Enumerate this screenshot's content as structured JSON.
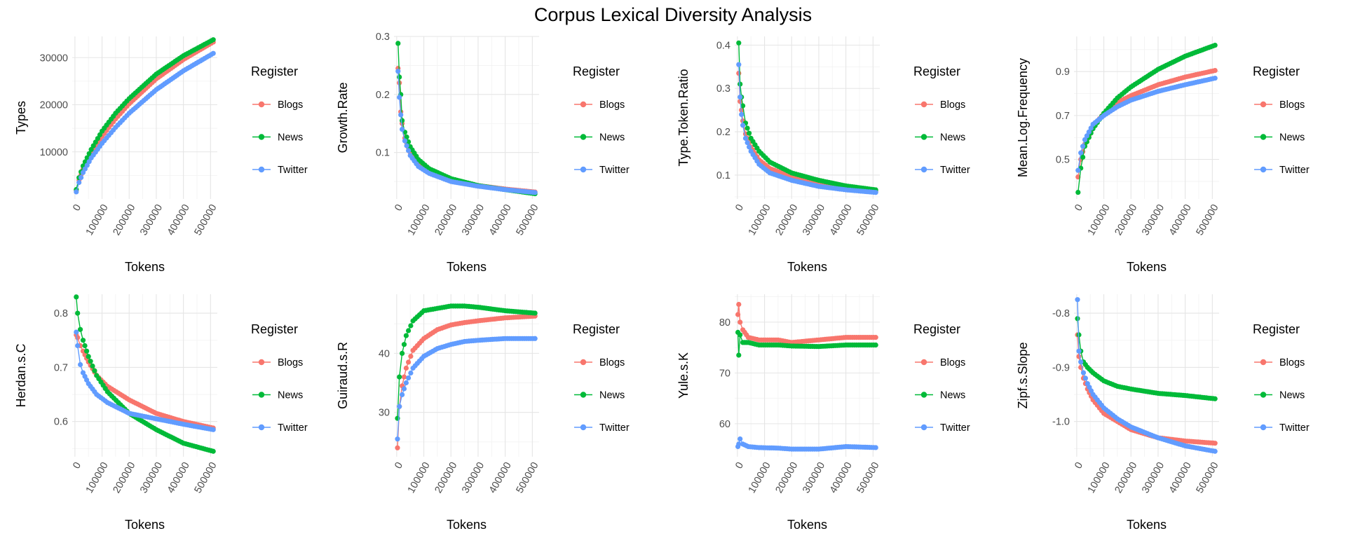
{
  "title": "Corpus Lexical Diversity Analysis",
  "colors": {
    "Blogs": "#F8766D",
    "News": "#00BA38",
    "Twitter": "#619CFF"
  },
  "legend_title": "Register",
  "legend_items": [
    "Blogs",
    "News",
    "Twitter"
  ],
  "chart_data": [
    {
      "type": "line",
      "title": "",
      "xlabel": "Tokens",
      "ylabel": "Types",
      "xlim": [
        -10000,
        525000
      ],
      "ylim": [
        0,
        34500
      ],
      "xticks": [
        0,
        100000,
        200000,
        300000,
        400000,
        500000
      ],
      "yticks": [
        10000,
        20000,
        30000
      ],
      "ytick_labels": [
        "10000",
        "20000",
        "30000"
      ],
      "grid": true,
      "legend": "right",
      "x": [
        5000,
        15000,
        30000,
        60000,
        100000,
        150000,
        200000,
        300000,
        400000,
        510000
      ],
      "series": [
        {
          "name": "Blogs",
          "values": [
            1800,
            4000,
            6300,
            9800,
            13300,
            17000,
            20200,
            25500,
            29600,
            33300
          ]
        },
        {
          "name": "News",
          "values": [
            2000,
            4500,
            7000,
            10500,
            14400,
            18200,
            21300,
            26500,
            30400,
            33800
          ]
        },
        {
          "name": "Twitter",
          "values": [
            1500,
            3500,
            5600,
            8700,
            11800,
            15200,
            18200,
            23200,
            27200,
            30900
          ]
        }
      ]
    },
    {
      "type": "line",
      "title": "",
      "xlabel": "Tokens",
      "ylabel": "Growth.Rate",
      "xlim": [
        -10000,
        525000
      ],
      "ylim": [
        0.02,
        0.3
      ],
      "xticks": [
        0,
        100000,
        200000,
        300000,
        400000,
        500000
      ],
      "yticks": [
        0.1,
        0.2,
        0.3
      ],
      "ytick_labels": [
        "0.1",
        "0.2",
        "0.3"
      ],
      "grid": true,
      "legend": "right",
      "x": [
        5000,
        10000,
        15000,
        20000,
        30000,
        50000,
        80000,
        120000,
        200000,
        300000,
        400000,
        510000
      ],
      "series": [
        {
          "name": "Blogs",
          "values": [
            0.245,
            0.22,
            0.17,
            0.15,
            0.125,
            0.1,
            0.08,
            0.067,
            0.052,
            0.043,
            0.037,
            0.032
          ]
        },
        {
          "name": "News",
          "values": [
            0.288,
            0.23,
            0.2,
            0.155,
            0.135,
            0.11,
            0.088,
            0.072,
            0.055,
            0.043,
            0.036,
            0.029
          ]
        },
        {
          "name": "Twitter",
          "values": [
            0.24,
            0.195,
            0.165,
            0.14,
            0.12,
            0.095,
            0.076,
            0.064,
            0.05,
            0.042,
            0.036,
            0.031
          ]
        }
      ]
    },
    {
      "type": "line",
      "title": "",
      "xlabel": "Tokens",
      "ylabel": "Type.Token.Ratio",
      "xlim": [
        -10000,
        525000
      ],
      "ylim": [
        0.045,
        0.42
      ],
      "xticks": [
        0,
        100000,
        200000,
        300000,
        400000,
        500000
      ],
      "yticks": [
        0.1,
        0.2,
        0.3,
        0.4
      ],
      "ytick_labels": [
        "0.1",
        "0.2",
        "0.3",
        "0.4"
      ],
      "grid": true,
      "legend": "right",
      "x": [
        5000,
        10000,
        15000,
        20000,
        30000,
        50000,
        80000,
        120000,
        200000,
        300000,
        400000,
        510000
      ],
      "series": [
        {
          "name": "Blogs",
          "values": [
            0.335,
            0.27,
            0.25,
            0.225,
            0.195,
            0.165,
            0.135,
            0.115,
            0.097,
            0.082,
            0.072,
            0.063
          ]
        },
        {
          "name": "News",
          "values": [
            0.405,
            0.31,
            0.28,
            0.26,
            0.22,
            0.185,
            0.155,
            0.13,
            0.105,
            0.088,
            0.075,
            0.066
          ]
        },
        {
          "name": "Twitter",
          "values": [
            0.355,
            0.28,
            0.24,
            0.215,
            0.185,
            0.155,
            0.125,
            0.105,
            0.088,
            0.074,
            0.066,
            0.06
          ]
        }
      ]
    },
    {
      "type": "line",
      "title": "",
      "xlabel": "Tokens",
      "ylabel": "Mean.Log.Frequency",
      "xlim": [
        -10000,
        525000
      ],
      "ylim": [
        0.32,
        1.06
      ],
      "xticks": [
        0,
        100000,
        200000,
        300000,
        400000,
        500000
      ],
      "yticks": [
        0.5,
        0.7,
        0.9
      ],
      "ytick_labels": [
        "0.5",
        "0.7",
        "0.9"
      ],
      "grid": true,
      "legend": "right",
      "x": [
        5000,
        15000,
        30000,
        60000,
        100000,
        150000,
        200000,
        300000,
        400000,
        510000
      ],
      "series": [
        {
          "name": "Blogs",
          "values": [
            0.42,
            0.5,
            0.57,
            0.65,
            0.71,
            0.76,
            0.79,
            0.84,
            0.875,
            0.905
          ]
        },
        {
          "name": "News",
          "values": [
            0.35,
            0.46,
            0.56,
            0.64,
            0.71,
            0.78,
            0.83,
            0.91,
            0.97,
            1.02
          ]
        },
        {
          "name": "Twitter",
          "values": [
            0.45,
            0.53,
            0.59,
            0.66,
            0.7,
            0.74,
            0.77,
            0.81,
            0.84,
            0.87
          ]
        }
      ]
    },
    {
      "type": "line",
      "title": "",
      "xlabel": "Tokens",
      "ylabel": "Herdan.s.C",
      "xlim": [
        -10000,
        525000
      ],
      "ylim": [
        0.535,
        0.835
      ],
      "xticks": [
        0,
        100000,
        200000,
        300000,
        400000,
        500000
      ],
      "yticks": [
        0.6,
        0.7,
        0.8
      ],
      "ytick_labels": [
        "0.6",
        "0.7",
        "0.8"
      ],
      "grid": true,
      "legend": "right",
      "x": [
        5000,
        10000,
        20000,
        30000,
        50000,
        80000,
        120000,
        200000,
        300000,
        400000,
        510000
      ],
      "series": [
        {
          "name": "Blogs",
          "values": [
            0.76,
            0.755,
            0.74,
            0.73,
            0.71,
            0.685,
            0.665,
            0.64,
            0.615,
            0.6,
            0.588
          ]
        },
        {
          "name": "News",
          "values": [
            0.83,
            0.8,
            0.77,
            0.75,
            0.72,
            0.685,
            0.655,
            0.615,
            0.585,
            0.56,
            0.545
          ]
        },
        {
          "name": "Twitter",
          "values": [
            0.765,
            0.74,
            0.705,
            0.69,
            0.67,
            0.65,
            0.635,
            0.615,
            0.605,
            0.595,
            0.585
          ]
        }
      ]
    },
    {
      "type": "line",
      "title": "",
      "xlabel": "Tokens",
      "ylabel": "Guiraud.s.R",
      "xlim": [
        -10000,
        525000
      ],
      "ylim": [
        22.5,
        50
      ],
      "xticks": [
        0,
        100000,
        200000,
        300000,
        400000,
        500000
      ],
      "yticks": [
        30,
        40
      ],
      "ytick_labels": [
        "30",
        "40"
      ],
      "grid": true,
      "legend": "right",
      "x": [
        3000,
        10000,
        20000,
        35000,
        60000,
        100000,
        150000,
        200000,
        250000,
        300000,
        400000,
        510000
      ],
      "series": [
        {
          "name": "Blogs",
          "values": [
            24,
            31,
            34.5,
            37.5,
            40.5,
            42.5,
            44,
            44.8,
            45.2,
            45.5,
            46,
            46.3
          ]
        },
        {
          "name": "News",
          "values": [
            29,
            36,
            40,
            43,
            45.5,
            47.2,
            47.6,
            48,
            48,
            47.8,
            47.2,
            46.8
          ]
        },
        {
          "name": "Twitter",
          "values": [
            25.5,
            31,
            33,
            35,
            37.5,
            39.5,
            40.8,
            41.5,
            42,
            42.2,
            42.5,
            42.5
          ]
        }
      ]
    },
    {
      "type": "line",
      "title": "",
      "xlabel": "Tokens",
      "ylabel": "Yule.s.K",
      "xlim": [
        -10000,
        525000
      ],
      "ylim": [
        53.5,
        85.5
      ],
      "xticks": [
        0,
        100000,
        200000,
        300000,
        400000,
        500000
      ],
      "yticks": [
        60,
        70,
        80
      ],
      "ytick_labels": [
        "60",
        "70",
        "80"
      ],
      "grid": true,
      "legend": "right",
      "x": [
        2000,
        5000,
        10000,
        20000,
        40000,
        80000,
        150000,
        200000,
        300000,
        400000,
        510000
      ],
      "series": [
        {
          "name": "Blogs",
          "values": [
            81.5,
            83.5,
            80,
            78.5,
            77,
            76.5,
            76.5,
            76,
            76.5,
            77,
            77
          ]
        },
        {
          "name": "News",
          "values": [
            78,
            73.5,
            77.5,
            76,
            76,
            75.5,
            75.5,
            75.3,
            75.2,
            75.5,
            75.5
          ]
        },
        {
          "name": "Twitter",
          "values": [
            55.5,
            56,
            57,
            56,
            55.5,
            55.3,
            55.2,
            55,
            55,
            55.5,
            55.3
          ]
        }
      ]
    },
    {
      "type": "line",
      "title": "",
      "xlabel": "Tokens",
      "ylabel": "Zipf.s.Slope",
      "xlim": [
        -10000,
        525000
      ],
      "ylim": [
        -1.065,
        -0.765
      ],
      "xticks": [
        0,
        100000,
        200000,
        300000,
        400000,
        500000
      ],
      "yticks": [
        -1.0,
        -0.9,
        -0.8
      ],
      "ytick_labels": [
        "-1.0",
        "-0.9",
        "-0.8"
      ],
      "grid": true,
      "legend": "right",
      "x": [
        3000,
        8000,
        15000,
        25000,
        40000,
        60000,
        100000,
        150000,
        200000,
        300000,
        400000,
        510000
      ],
      "series": [
        {
          "name": "Blogs",
          "values": [
            -0.84,
            -0.88,
            -0.9,
            -0.92,
            -0.94,
            -0.96,
            -0.985,
            -1.0,
            -1.015,
            -1.03,
            -1.036,
            -1.04
          ]
        },
        {
          "name": "News",
          "values": [
            -0.81,
            -0.84,
            -0.87,
            -0.89,
            -0.9,
            -0.91,
            -0.925,
            -0.935,
            -0.94,
            -0.948,
            -0.952,
            -0.958
          ]
        },
        {
          "name": "Twitter",
          "values": [
            -0.775,
            -0.87,
            -0.89,
            -0.91,
            -0.93,
            -0.95,
            -0.975,
            -0.995,
            -1.01,
            -1.03,
            -1.045,
            -1.055
          ]
        }
      ]
    }
  ]
}
